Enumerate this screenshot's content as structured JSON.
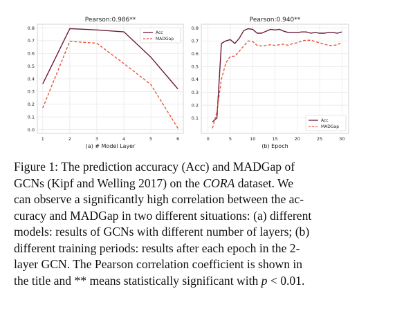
{
  "chart_data": [
    {
      "type": "line",
      "title": "Pearson:0.986**",
      "xlabel": "(a) # Model Layer",
      "ylabel": "",
      "xlim": [
        0.8,
        6.2
      ],
      "ylim": [
        -0.03,
        0.83
      ],
      "x_ticks": [
        "1",
        "2",
        "3",
        "4",
        "5",
        "6"
      ],
      "y_ticks": [
        "0.0",
        "0.1",
        "0.2",
        "0.3",
        "0.4",
        "0.5",
        "0.6",
        "0.7",
        "0.8"
      ],
      "x": [
        1,
        2,
        3,
        4,
        5,
        6
      ],
      "series": [
        {
          "name": "Acc",
          "values": [
            0.36,
            0.795,
            0.785,
            0.77,
            0.57,
            0.32
          ],
          "color": "#6b1a3c",
          "style": "solid"
        },
        {
          "name": "MADGap",
          "values": [
            0.17,
            0.695,
            0.68,
            0.52,
            0.355,
            0.01
          ],
          "color": "#e8553a",
          "style": "dashed"
        }
      ],
      "legend_position": "top-right",
      "grid": true
    },
    {
      "type": "line",
      "title": "Pearson:0.940**",
      "xlabel": "(b) Epoch",
      "ylabel": "",
      "xlim": [
        -1.5,
        31.5
      ],
      "ylim": [
        -0.02,
        0.83
      ],
      "x_ticks": [
        "0",
        "5",
        "10",
        "15",
        "20",
        "25",
        "30"
      ],
      "y_ticks": [
        "0.1",
        "0.2",
        "0.3",
        "0.4",
        "0.5",
        "0.6",
        "0.7",
        "0.8"
      ],
      "x": [
        1,
        2,
        3,
        4,
        5,
        6,
        7,
        8,
        9,
        10,
        11,
        12,
        13,
        14,
        15,
        16,
        17,
        18,
        19,
        20,
        21,
        22,
        23,
        24,
        25,
        26,
        27,
        28,
        29,
        30
      ],
      "series": [
        {
          "name": "Acc",
          "values": [
            0.07,
            0.1,
            0.68,
            0.7,
            0.71,
            0.68,
            0.72,
            0.78,
            0.795,
            0.79,
            0.76,
            0.76,
            0.775,
            0.79,
            0.785,
            0.79,
            0.775,
            0.765,
            0.765,
            0.765,
            0.77,
            0.77,
            0.76,
            0.765,
            0.76,
            0.76,
            0.765,
            0.765,
            0.76,
            0.77
          ],
          "color": "#6b1a3c",
          "style": "solid"
        },
        {
          "name": "MADGap",
          "values": [
            0.02,
            0.15,
            0.4,
            0.53,
            0.58,
            0.58,
            0.62,
            0.66,
            0.7,
            0.695,
            0.665,
            0.66,
            0.665,
            0.67,
            0.665,
            0.67,
            0.675,
            0.665,
            0.68,
            0.685,
            0.7,
            0.705,
            0.705,
            0.695,
            0.685,
            0.675,
            0.665,
            0.665,
            0.67,
            0.69
          ],
          "color": "#e8553a",
          "style": "dashed"
        }
      ],
      "legend_position": "lower-right",
      "grid": true
    }
  ],
  "caption": {
    "label": "Figure 1:",
    "line1": "The prediction accuracy (Acc) and MADGap of",
    "line2_a": "GCNs (Kipf and Welling 2017) on the ",
    "line2_ital": "CORA",
    "line2_b": " dataset. We",
    "line3": "can observe a significantly high correlation between the ac-",
    "line4": "curacy and MADGap in two different situations: (a) different",
    "line5": "models: results of GCNs with different number of layers; (b)",
    "line6": "different training periods: results after each epoch in the 2-",
    "line7": "layer GCN. The Pearson correlation coefficient is shown in",
    "line8_a": "the title and ** means statistically significant with ",
    "line8_p": "p",
    "line8_b": " < 0.01."
  }
}
